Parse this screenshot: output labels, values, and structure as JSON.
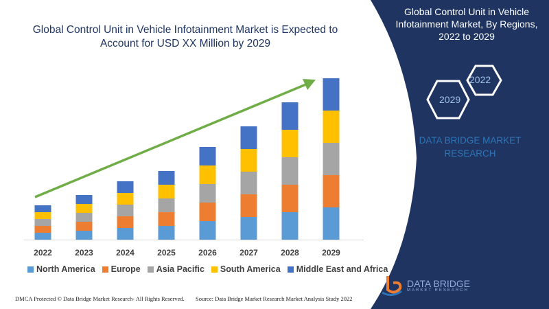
{
  "title": "Global Control Unit in Vehicle Infotainment Market is Expected to Account for USD XX Million by 2029",
  "side_panel": {
    "title": "Global Control Unit in Vehicle Infotainment Market, By Regions, 2022 to 2029",
    "hex_years": [
      "2022",
      "2029"
    ],
    "brand_text": "DATA BRIDGE MARKET RESEARCH",
    "logo_text": "DATA BRIDGE",
    "logo_subtext": "MARKET RESEARCH",
    "background_color": "#1f3461"
  },
  "footer": {
    "left": "DMCA Protected © Data Bridge Market Research- All Rights Reserved.",
    "right": "Source: Data Bridge Market Research Market Analysis Study 2022"
  },
  "chart_data": {
    "type": "bar",
    "stacked": true,
    "categories": [
      "2022",
      "2023",
      "2024",
      "2025",
      "2026",
      "2027",
      "2028",
      "2029"
    ],
    "series": [
      {
        "name": "North America",
        "color": "#5b9bd5",
        "values": [
          1.0,
          1.3,
          1.7,
          2.0,
          2.7,
          3.3,
          4.0,
          4.7
        ]
      },
      {
        "name": "Europe",
        "color": "#ed7d31",
        "values": [
          1.0,
          1.3,
          1.7,
          2.0,
          2.7,
          3.3,
          4.0,
          4.7
        ]
      },
      {
        "name": "Asia Pacific",
        "color": "#a5a5a5",
        "values": [
          1.0,
          1.3,
          1.7,
          2.0,
          2.7,
          3.3,
          4.0,
          4.7
        ]
      },
      {
        "name": "South America",
        "color": "#ffc000",
        "values": [
          1.0,
          1.3,
          1.7,
          2.0,
          2.7,
          3.3,
          4.0,
          4.7
        ]
      },
      {
        "name": "Middle East and Africa",
        "color": "#4472c4",
        "values": [
          1.0,
          1.3,
          1.7,
          2.0,
          2.7,
          3.3,
          4.0,
          4.7
        ]
      }
    ],
    "y_axis_shown": false,
    "grid": false,
    "legend_position": "bottom",
    "trend_arrow_color": "#70ad47"
  }
}
